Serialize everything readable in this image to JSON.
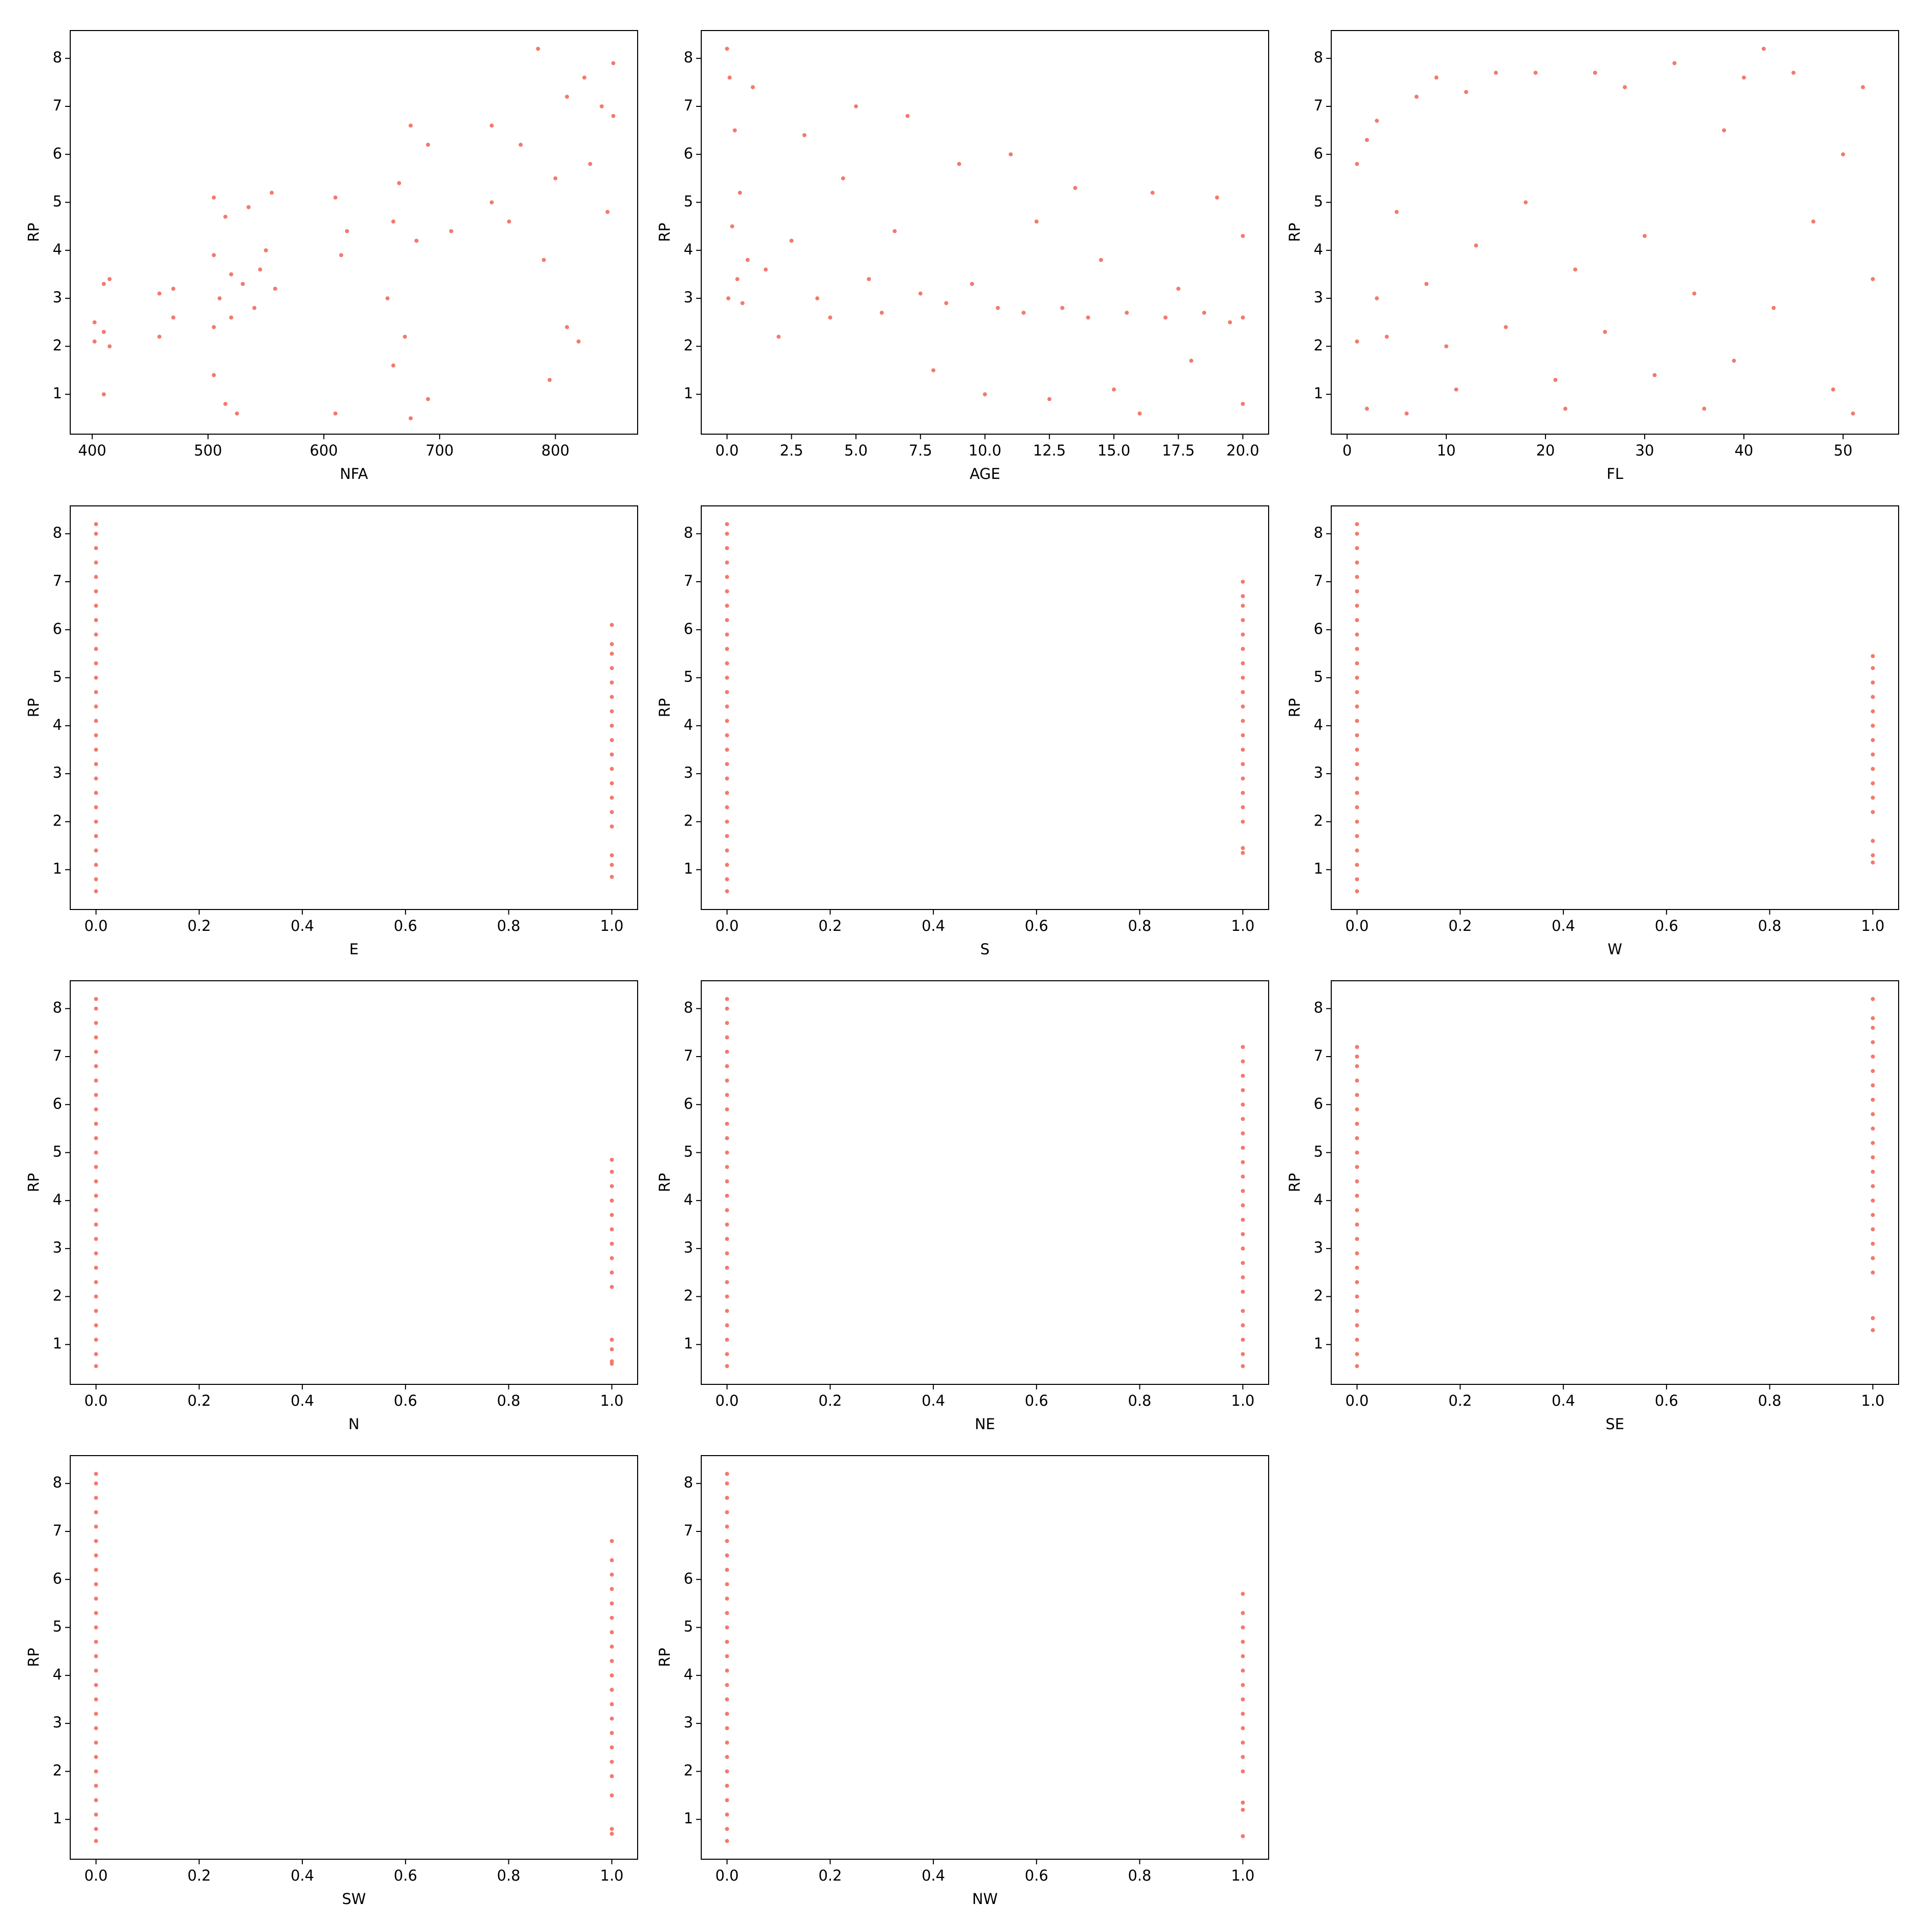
{
  "chart_data": [
    {
      "type": "scatter",
      "x_label": "NFA",
      "y_label": "RP",
      "color": "#f4796c",
      "x": [
        402,
        402,
        410,
        410,
        410,
        415,
        415,
        458,
        458,
        470,
        470,
        505,
        505,
        505,
        505,
        510,
        515,
        515,
        520,
        520,
        525,
        530,
        535,
        540,
        545,
        550,
        555,
        558,
        610,
        610,
        615,
        620,
        655,
        660,
        660,
        665,
        670,
        675,
        675,
        680,
        690,
        690,
        710,
        745,
        745,
        760,
        770,
        785,
        790,
        795,
        800,
        810,
        810,
        820,
        825,
        830,
        840,
        845,
        850,
        850
      ],
      "values": [
        2.1,
        2.5,
        2.3,
        3.3,
        1.0,
        3.4,
        2.0,
        2.2,
        3.1,
        2.6,
        3.2,
        2.4,
        3.9,
        5.1,
        1.4,
        3.0,
        4.7,
        0.8,
        2.6,
        3.5,
        0.6,
        3.3,
        4.9,
        2.8,
        3.6,
        4.0,
        5.2,
        3.2,
        0.6,
        5.1,
        3.9,
        4.4,
        3.0,
        4.6,
        1.6,
        5.4,
        2.2,
        6.6,
        0.5,
        4.2,
        6.2,
        0.9,
        4.4,
        5.0,
        6.6,
        4.6,
        6.2,
        8.2,
        3.8,
        1.3,
        5.5,
        7.2,
        2.4,
        2.1,
        7.6,
        5.8,
        7.0,
        4.8,
        6.8,
        7.9
      ],
      "xlim": [
        381,
        871
      ],
      "xticks": [
        400,
        500,
        600,
        700,
        800
      ],
      "ylim": [
        0.17,
        8.58
      ],
      "yticks": [
        1,
        2,
        3,
        4,
        5,
        6,
        7,
        8
      ]
    },
    {
      "type": "scatter",
      "x_label": "AGE",
      "y_label": "RP",
      "color": "#f4796c",
      "x": [
        0,
        0.05,
        0.1,
        0.2,
        0.3,
        0.4,
        0.5,
        0.6,
        0.8,
        1,
        1.5,
        2,
        2.5,
        3,
        3.5,
        4,
        4.5,
        5,
        5.5,
        6,
        6.5,
        7,
        7.5,
        8,
        8.5,
        9,
        9.5,
        10,
        10.5,
        11,
        11.5,
        12,
        12.5,
        13,
        13.5,
        14,
        14.5,
        15,
        15.5,
        16,
        16.5,
        17,
        17.5,
        18,
        18.5,
        19,
        19.5,
        20,
        20,
        20
      ],
      "values": [
        8.2,
        3.0,
        7.6,
        4.5,
        6.5,
        3.4,
        5.2,
        2.9,
        3.8,
        7.4,
        3.6,
        2.2,
        4.2,
        6.4,
        3.0,
        2.6,
        5.5,
        7.0,
        3.4,
        2.7,
        4.4,
        6.8,
        3.1,
        1.5,
        2.9,
        5.8,
        3.3,
        1.0,
        2.8,
        6.0,
        2.7,
        4.6,
        0.9,
        2.8,
        5.3,
        2.6,
        3.8,
        1.1,
        2.7,
        0.6,
        5.2,
        2.6,
        3.2,
        1.7,
        2.7,
        5.1,
        2.5,
        2.6,
        0.8,
        4.3
      ],
      "xlim": [
        -1,
        21
      ],
      "xticks": [
        {
          "value": 0,
          "label": "0.0"
        },
        2.5,
        {
          "value": 5,
          "label": "5.0"
        },
        7.5,
        {
          "value": 10,
          "label": "10.0"
        },
        12.5,
        {
          "value": 15,
          "label": "15.0"
        },
        17.5,
        {
          "value": 20,
          "label": "20.0"
        }
      ],
      "ylim": [
        0.17,
        8.58
      ],
      "yticks": [
        1,
        2,
        3,
        4,
        5,
        6,
        7,
        8
      ]
    },
    {
      "type": "scatter",
      "x_label": "FL",
      "y_label": "RP",
      "color": "#f4796c",
      "x": [
        1,
        1,
        2,
        2,
        3,
        3,
        4,
        5,
        6,
        7,
        8,
        9,
        10,
        11,
        12,
        13,
        15,
        16,
        18,
        19,
        21,
        22,
        23,
        25,
        26,
        28,
        30,
        31,
        33,
        35,
        36,
        38,
        39,
        40,
        42,
        43,
        45,
        47,
        49,
        50,
        51,
        52,
        53
      ],
      "values": [
        2.1,
        5.8,
        6.3,
        0.7,
        3.0,
        6.7,
        2.2,
        4.8,
        0.6,
        7.2,
        3.3,
        7.6,
        2.0,
        1.1,
        7.3,
        4.1,
        7.7,
        2.4,
        5.0,
        7.7,
        1.3,
        0.7,
        3.6,
        7.7,
        2.3,
        7.4,
        4.3,
        1.4,
        7.9,
        3.1,
        0.7,
        6.5,
        1.7,
        7.6,
        8.2,
        2.8,
        7.7,
        4.6,
        1.1,
        6.0,
        0.6,
        7.4,
        3.4
      ],
      "xlim": [
        -1.6,
        55.6
      ],
      "xticks": [
        0,
        10,
        20,
        30,
        40,
        50
      ],
      "ylim": [
        0.17,
        8.58
      ],
      "yticks": [
        1,
        2,
        3,
        4,
        5,
        6,
        7,
        8
      ]
    },
    {
      "type": "scatter",
      "x_label": "E",
      "y_label": "RP",
      "color": "#f4796c",
      "x": [
        0,
        0,
        0,
        0,
        0,
        0,
        0,
        0,
        0,
        0,
        0,
        0,
        0,
        0,
        0,
        0,
        0,
        0,
        0,
        0,
        0,
        0,
        0,
        0,
        0,
        0,
        0,
        1,
        1,
        1,
        1,
        1,
        1,
        1,
        1,
        1,
        1,
        1,
        1,
        1,
        1,
        1,
        1,
        1,
        1
      ],
      "values": [
        0.55,
        0.8,
        1.1,
        1.4,
        1.7,
        2.0,
        2.3,
        2.6,
        2.9,
        3.2,
        3.5,
        3.8,
        4.1,
        4.4,
        4.7,
        5.0,
        5.3,
        5.6,
        5.9,
        6.2,
        6.5,
        6.8,
        7.1,
        7.4,
        7.7,
        8.0,
        8.2,
        0.85,
        1.1,
        1.3,
        1.9,
        2.2,
        2.5,
        2.8,
        3.1,
        3.4,
        3.7,
        4.0,
        4.3,
        4.6,
        4.9,
        5.2,
        5.5,
        5.7,
        6.1
      ],
      "xlim": [
        -0.05,
        1.05
      ],
      "xticks": [
        {
          "value": 0,
          "label": "0.0"
        },
        0.2,
        0.4,
        0.6,
        0.8,
        {
          "value": 1,
          "label": "1.0"
        }
      ],
      "ylim": [
        0.17,
        8.58
      ],
      "yticks": [
        1,
        2,
        3,
        4,
        5,
        6,
        7,
        8
      ]
    },
    {
      "type": "scatter",
      "x_label": "S",
      "y_label": "RP",
      "color": "#f4796c",
      "x": [
        0,
        0,
        0,
        0,
        0,
        0,
        0,
        0,
        0,
        0,
        0,
        0,
        0,
        0,
        0,
        0,
        0,
        0,
        0,
        0,
        0,
        0,
        0,
        0,
        0,
        0,
        0,
        1,
        1,
        1,
        1,
        1,
        1,
        1,
        1,
        1,
        1,
        1,
        1,
        1,
        1,
        1,
        1,
        1,
        1,
        1,
        1
      ],
      "values": [
        0.55,
        0.8,
        1.1,
        1.4,
        1.7,
        2.0,
        2.3,
        2.6,
        2.9,
        3.2,
        3.5,
        3.8,
        4.1,
        4.4,
        4.7,
        5.0,
        5.3,
        5.6,
        5.9,
        6.2,
        6.5,
        6.8,
        7.1,
        7.4,
        7.7,
        8.0,
        8.2,
        1.35,
        1.45,
        2.0,
        2.3,
        2.6,
        2.9,
        3.2,
        3.5,
        3.8,
        4.1,
        4.4,
        4.7,
        5.0,
        5.3,
        5.6,
        5.9,
        6.2,
        6.5,
        6.7,
        7.0
      ],
      "xlim": [
        -0.05,
        1.05
      ],
      "xticks": [
        {
          "value": 0,
          "label": "0.0"
        },
        0.2,
        0.4,
        0.6,
        0.8,
        {
          "value": 1,
          "label": "1.0"
        }
      ],
      "ylim": [
        0.17,
        8.58
      ],
      "yticks": [
        1,
        2,
        3,
        4,
        5,
        6,
        7,
        8
      ]
    },
    {
      "type": "scatter",
      "x_label": "W",
      "y_label": "RP",
      "color": "#f4796c",
      "x": [
        0,
        0,
        0,
        0,
        0,
        0,
        0,
        0,
        0,
        0,
        0,
        0,
        0,
        0,
        0,
        0,
        0,
        0,
        0,
        0,
        0,
        0,
        0,
        0,
        0,
        0,
        0,
        1,
        1,
        1,
        1,
        1,
        1,
        1,
        1,
        1,
        1,
        1,
        1,
        1,
        1,
        1
      ],
      "values": [
        0.55,
        0.8,
        1.1,
        1.4,
        1.7,
        2.0,
        2.3,
        2.6,
        2.9,
        3.2,
        3.5,
        3.8,
        4.1,
        4.4,
        4.7,
        5.0,
        5.3,
        5.6,
        5.9,
        6.2,
        6.5,
        6.8,
        7.1,
        7.4,
        7.7,
        8.0,
        8.2,
        1.15,
        1.3,
        1.6,
        2.2,
        2.5,
        2.8,
        3.1,
        3.4,
        3.7,
        4.0,
        4.3,
        4.6,
        4.9,
        5.2,
        5.45
      ],
      "xlim": [
        -0.05,
        1.05
      ],
      "xticks": [
        {
          "value": 0,
          "label": "0.0"
        },
        0.2,
        0.4,
        0.6,
        0.8,
        {
          "value": 1,
          "label": "1.0"
        }
      ],
      "ylim": [
        0.17,
        8.58
      ],
      "yticks": [
        1,
        2,
        3,
        4,
        5,
        6,
        7,
        8
      ]
    },
    {
      "type": "scatter",
      "x_label": "N",
      "y_label": "RP",
      "color": "#f4796c",
      "x": [
        0,
        0,
        0,
        0,
        0,
        0,
        0,
        0,
        0,
        0,
        0,
        0,
        0,
        0,
        0,
        0,
        0,
        0,
        0,
        0,
        0,
        0,
        0,
        0,
        0,
        0,
        0,
        1,
        1,
        1,
        1,
        1,
        1,
        1,
        1,
        1,
        1,
        1,
        1,
        1,
        1
      ],
      "values": [
        0.55,
        0.8,
        1.1,
        1.4,
        1.7,
        2.0,
        2.3,
        2.6,
        2.9,
        3.2,
        3.5,
        3.8,
        4.1,
        4.4,
        4.7,
        5.0,
        5.3,
        5.6,
        5.9,
        6.2,
        6.5,
        6.8,
        7.1,
        7.4,
        7.7,
        8.0,
        8.2,
        0.6,
        0.65,
        0.9,
        1.1,
        2.2,
        2.5,
        2.8,
        3.1,
        3.4,
        3.7,
        4.0,
        4.3,
        4.6,
        4.85
      ],
      "xlim": [
        -0.05,
        1.05
      ],
      "xticks": [
        {
          "value": 0,
          "label": "0.0"
        },
        0.2,
        0.4,
        0.6,
        0.8,
        {
          "value": 1,
          "label": "1.0"
        }
      ],
      "ylim": [
        0.17,
        8.58
      ],
      "yticks": [
        1,
        2,
        3,
        4,
        5,
        6,
        7,
        8
      ]
    },
    {
      "type": "scatter",
      "x_label": "NE",
      "y_label": "RP",
      "color": "#f4796c",
      "x": [
        0,
        0,
        0,
        0,
        0,
        0,
        0,
        0,
        0,
        0,
        0,
        0,
        0,
        0,
        0,
        0,
        0,
        0,
        0,
        0,
        0,
        0,
        0,
        0,
        0,
        0,
        0,
        1,
        1,
        1,
        1,
        1,
        1,
        1,
        1,
        1,
        1,
        1,
        1,
        1,
        1,
        1,
        1,
        1,
        1,
        1,
        1,
        1,
        1,
        1
      ],
      "values": [
        0.55,
        0.8,
        1.1,
        1.4,
        1.7,
        2.0,
        2.3,
        2.6,
        2.9,
        3.2,
        3.5,
        3.8,
        4.1,
        4.4,
        4.7,
        5.0,
        5.3,
        5.6,
        5.9,
        6.2,
        6.5,
        6.8,
        7.1,
        7.4,
        7.7,
        8.0,
        8.2,
        0.55,
        0.8,
        1.1,
        1.4,
        1.7,
        2.1,
        2.4,
        2.7,
        3.0,
        3.3,
        3.6,
        3.9,
        4.2,
        4.5,
        4.8,
        5.1,
        5.4,
        5.7,
        6.0,
        6.3,
        6.6,
        6.9,
        7.2
      ],
      "xlim": [
        -0.05,
        1.05
      ],
      "xticks": [
        {
          "value": 0,
          "label": "0.0"
        },
        0.2,
        0.4,
        0.6,
        0.8,
        {
          "value": 1,
          "label": "1.0"
        }
      ],
      "ylim": [
        0.17,
        8.58
      ],
      "yticks": [
        1,
        2,
        3,
        4,
        5,
        6,
        7,
        8
      ]
    },
    {
      "type": "scatter",
      "x_label": "SE",
      "y_label": "RP",
      "color": "#f4796c",
      "x": [
        0,
        0,
        0,
        0,
        0,
        0,
        0,
        0,
        0,
        0,
        0,
        0,
        0,
        0,
        0,
        0,
        0,
        0,
        0,
        0,
        0,
        0,
        0,
        0,
        1,
        1,
        1,
        1,
        1,
        1,
        1,
        1,
        1,
        1,
        1,
        1,
        1,
        1,
        1,
        1,
        1,
        1,
        1,
        1,
        1,
        1
      ],
      "values": [
        0.55,
        0.8,
        1.1,
        1.4,
        1.7,
        2.0,
        2.3,
        2.6,
        2.9,
        3.2,
        3.5,
        3.8,
        4.1,
        4.4,
        4.7,
        5.0,
        5.3,
        5.6,
        5.9,
        6.2,
        6.5,
        6.8,
        7.0,
        7.2,
        1.3,
        1.55,
        2.5,
        2.8,
        3.1,
        3.4,
        3.7,
        4.0,
        4.3,
        4.6,
        4.9,
        5.2,
        5.5,
        5.8,
        6.1,
        6.4,
        6.7,
        7.0,
        7.3,
        7.6,
        7.8,
        8.2
      ],
      "xlim": [
        -0.05,
        1.05
      ],
      "xticks": [
        {
          "value": 0,
          "label": "0.0"
        },
        0.2,
        0.4,
        0.6,
        0.8,
        {
          "value": 1,
          "label": "1.0"
        }
      ],
      "ylim": [
        0.17,
        8.58
      ],
      "yticks": [
        1,
        2,
        3,
        4,
        5,
        6,
        7,
        8
      ]
    },
    {
      "type": "scatter",
      "x_label": "SW",
      "y_label": "RP",
      "color": "#f4796c",
      "x": [
        0,
        0,
        0,
        0,
        0,
        0,
        0,
        0,
        0,
        0,
        0,
        0,
        0,
        0,
        0,
        0,
        0,
        0,
        0,
        0,
        0,
        0,
        0,
        0,
        0,
        0,
        0,
        1,
        1,
        1,
        1,
        1,
        1,
        1,
        1,
        1,
        1,
        1,
        1,
        1,
        1,
        1,
        1,
        1,
        1,
        1,
        1
      ],
      "values": [
        0.55,
        0.8,
        1.1,
        1.4,
        1.7,
        2.0,
        2.3,
        2.6,
        2.9,
        3.2,
        3.5,
        3.8,
        4.1,
        4.4,
        4.7,
        5.0,
        5.3,
        5.6,
        5.9,
        6.2,
        6.5,
        6.8,
        7.1,
        7.4,
        7.7,
        8.0,
        8.2,
        0.7,
        0.8,
        1.5,
        1.9,
        2.2,
        2.5,
        2.8,
        3.1,
        3.4,
        3.7,
        4.0,
        4.3,
        4.6,
        4.9,
        5.2,
        5.5,
        5.8,
        6.1,
        6.4,
        6.8
      ],
      "xlim": [
        -0.05,
        1.05
      ],
      "xticks": [
        {
          "value": 0,
          "label": "0.0"
        },
        0.2,
        0.4,
        0.6,
        0.8,
        {
          "value": 1,
          "label": "1.0"
        }
      ],
      "ylim": [
        0.17,
        8.58
      ],
      "yticks": [
        1,
        2,
        3,
        4,
        5,
        6,
        7,
        8
      ]
    },
    {
      "type": "scatter",
      "x_label": "NW",
      "y_label": "RP",
      "color": "#f4796c",
      "x": [
        0,
        0,
        0,
        0,
        0,
        0,
        0,
        0,
        0,
        0,
        0,
        0,
        0,
        0,
        0,
        0,
        0,
        0,
        0,
        0,
        0,
        0,
        0,
        0,
        0,
        0,
        0,
        1,
        1,
        1,
        1,
        1,
        1,
        1,
        1,
        1,
        1,
        1,
        1,
        1,
        1,
        1,
        1
      ],
      "values": [
        0.55,
        0.8,
        1.1,
        1.4,
        1.7,
        2.0,
        2.3,
        2.6,
        2.9,
        3.2,
        3.5,
        3.8,
        4.1,
        4.4,
        4.7,
        5.0,
        5.3,
        5.6,
        5.9,
        6.2,
        6.5,
        6.8,
        7.1,
        7.4,
        7.7,
        8.0,
        8.2,
        0.65,
        1.2,
        1.35,
        2.0,
        2.3,
        2.6,
        2.9,
        3.2,
        3.5,
        3.8,
        4.1,
        4.4,
        4.7,
        5.0,
        5.3,
        5.7
      ],
      "xlim": [
        -0.05,
        1.05
      ],
      "xticks": [
        {
          "value": 0,
          "label": "0.0"
        },
        0.2,
        0.4,
        0.6,
        0.8,
        {
          "value": 1,
          "label": "1.0"
        }
      ],
      "ylim": [
        0.17,
        8.58
      ],
      "yticks": [
        1,
        2,
        3,
        4,
        5,
        6,
        7,
        8
      ]
    }
  ]
}
